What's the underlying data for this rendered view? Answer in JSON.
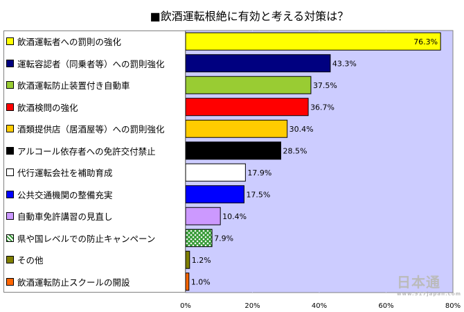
{
  "chart_data": {
    "type": "bar",
    "orientation": "horizontal",
    "title": "■飲酒運転根絶に有効と考える対策は？",
    "xlim": [
      0,
      80
    ],
    "xticks": [
      0,
      20,
      40,
      60,
      80
    ],
    "tick_suffix": "%",
    "plot_background": "#ccccff",
    "categories": [
      "飲酒運転者への罰則の強化",
      "運転容認者（同乗者等）への罰則強化",
      "飲酒運転防止装置付き自動車",
      "飲酒検問の強化",
      "酒類提供店（居酒屋等）への罰則強化",
      "アルコール依存者への免許交付禁止",
      "代行運転会社を補助育成",
      "公共交通機関の整備充実",
      "自動車免許講習の見直し",
      "県や国レベルでの防止キャンペーン",
      "その他",
      "飲酒運転防止スクールの開設"
    ],
    "values": [
      76.3,
      43.3,
      37.5,
      36.7,
      30.4,
      28.5,
      17.9,
      17.5,
      10.4,
      7.9,
      1.2,
      1.0
    ],
    "value_labels": [
      "76.3%",
      "43.3%",
      "37.5%",
      "36.7%",
      "30.4%",
      "28.5%",
      "17.9%",
      "17.5%",
      "10.4%",
      "7.9%",
      "1.2%",
      "1.0%"
    ],
    "colors": [
      "#ffff00",
      "#000080",
      "#99cc33",
      "#ff0000",
      "#ffcc00",
      "#000000",
      "#ffffff",
      "#0000ff",
      "#cc99ff",
      "#339933",
      "#808000",
      "#ff6600"
    ],
    "patterns": [
      "solid",
      "solid",
      "solid",
      "solid",
      "solid",
      "solid",
      "solid",
      "solid",
      "solid",
      "crosshatch",
      "solid",
      "solid"
    ]
  },
  "watermark": {
    "text": "日本通",
    "sub": "www.517japan.com"
  }
}
